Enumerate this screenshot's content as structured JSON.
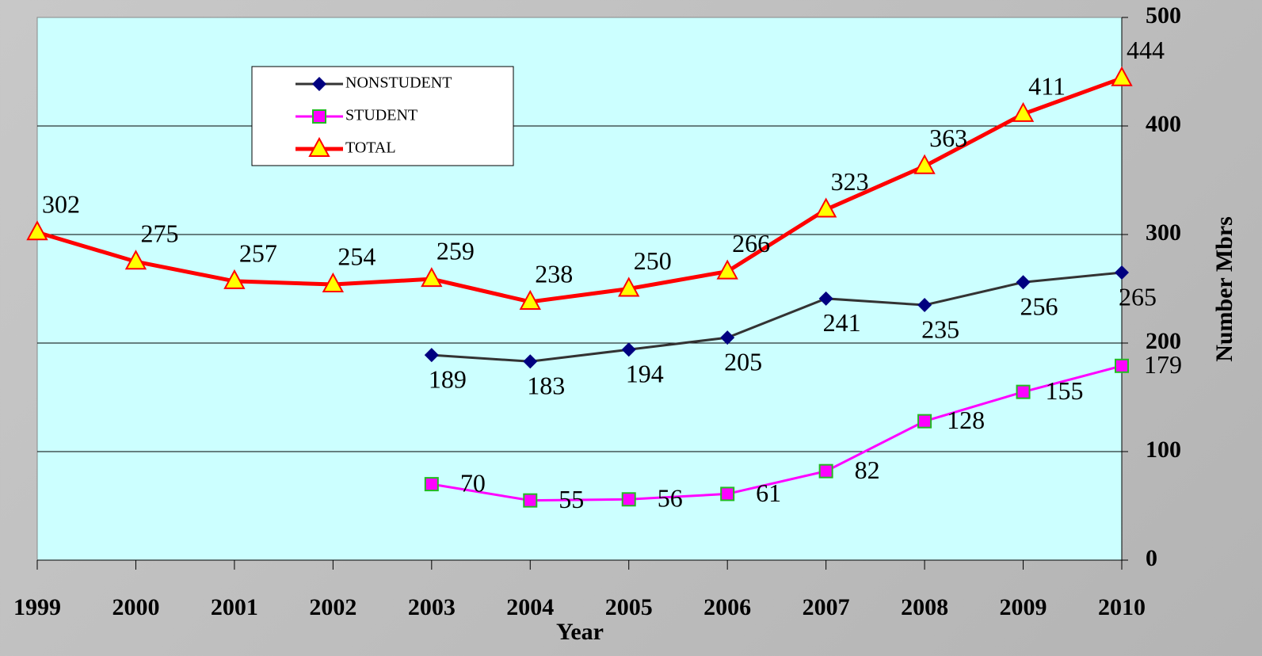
{
  "chart_data": {
    "type": "line",
    "categories": [
      "1999",
      "2000",
      "2001",
      "2002",
      "2003",
      "2004",
      "2005",
      "2006",
      "2007",
      "2008",
      "2009",
      "2010"
    ],
    "series": [
      {
        "name": "NONSTUDENT",
        "color": "#333333",
        "marker_color": "#000080",
        "values": [
          null,
          null,
          null,
          null,
          189,
          183,
          194,
          205,
          241,
          235,
          256,
          265
        ]
      },
      {
        "name": "STUDENT",
        "color": "#ff00ff",
        "marker_color": "#ff00ff",
        "values": [
          null,
          null,
          null,
          null,
          70,
          55,
          56,
          61,
          82,
          128,
          155,
          179
        ]
      },
      {
        "name": "TOTAL",
        "color": "#ff0000",
        "marker_color": "#ffff00",
        "values": [
          302,
          275,
          257,
          254,
          259,
          238,
          250,
          266,
          323,
          363,
          411,
          444
        ]
      }
    ],
    "xlabel": "Year",
    "ylabel": "Number Mbrs",
    "ylim": [
      0,
      500
    ],
    "yticks": [
      0,
      100,
      200,
      300,
      400,
      500
    ],
    "grid": true,
    "legend": "upper left"
  }
}
